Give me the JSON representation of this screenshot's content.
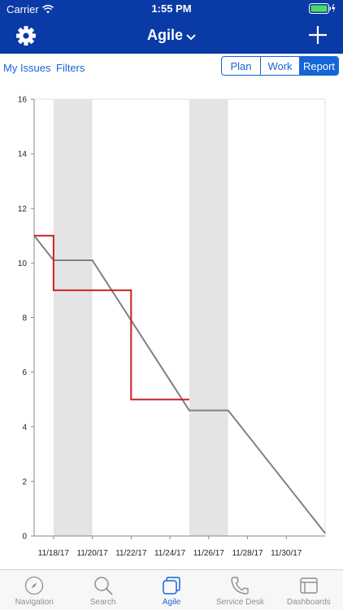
{
  "status": {
    "carrier": "Carrier",
    "time": "1:55 PM"
  },
  "nav": {
    "title": "Agile"
  },
  "links": {
    "my_issues": "My Issues",
    "filters": "Filters"
  },
  "segments": [
    {
      "label": "Plan",
      "active": false
    },
    {
      "label": "Work",
      "active": false
    },
    {
      "label": "Report",
      "active": true
    }
  ],
  "tabs": [
    {
      "label": "Navigation",
      "icon": "compass-icon",
      "active": false
    },
    {
      "label": "Search",
      "icon": "search-icon",
      "active": false
    },
    {
      "label": "Agile",
      "icon": "agile-board-icon",
      "active": true
    },
    {
      "label": "Service Desk",
      "icon": "phone-icon",
      "active": false
    },
    {
      "label": "Dashboards",
      "icon": "dashboards-icon",
      "active": false
    }
  ],
  "colors": {
    "brand": "#0a3aa6",
    "accent": "#1565d8",
    "ideal_line": "#808080",
    "remaining_line": "#cc2222",
    "weekend_band": "#e4e4e4"
  },
  "chart_data": {
    "type": "line",
    "ylim": [
      0,
      16
    ],
    "yticks": [
      "0",
      "2",
      "4",
      "6",
      "8",
      "10",
      "12",
      "14",
      "16"
    ],
    "xlim": [
      "11/17/17",
      "12/2/17"
    ],
    "xticks": [
      "11/18/17",
      "11/20/17",
      "11/22/17",
      "11/24/17",
      "11/26/17",
      "11/28/17",
      "11/30/17"
    ],
    "nonworking_days": [
      [
        "11/18/17",
        "11/20/17"
      ],
      [
        "11/25/17",
        "11/27/17"
      ]
    ],
    "series": [
      {
        "role": "ideal",
        "color": "#808080",
        "step": false,
        "points": [
          [
            "11/17/17",
            11
          ],
          [
            "11/18/17",
            10.1
          ],
          [
            "11/20/17",
            10.1
          ],
          [
            "11/25/17",
            4.6
          ],
          [
            "11/27/17",
            4.6
          ],
          [
            "12/2/17",
            0.1
          ]
        ]
      },
      {
        "role": "remaining",
        "color": "#cc2222",
        "step": true,
        "points": [
          [
            "11/17/17",
            11
          ],
          [
            "11/18/17",
            9
          ],
          [
            "11/21/17",
            9
          ],
          [
            "11/22/17",
            5
          ],
          [
            "11/25/17",
            5
          ]
        ]
      }
    ]
  }
}
